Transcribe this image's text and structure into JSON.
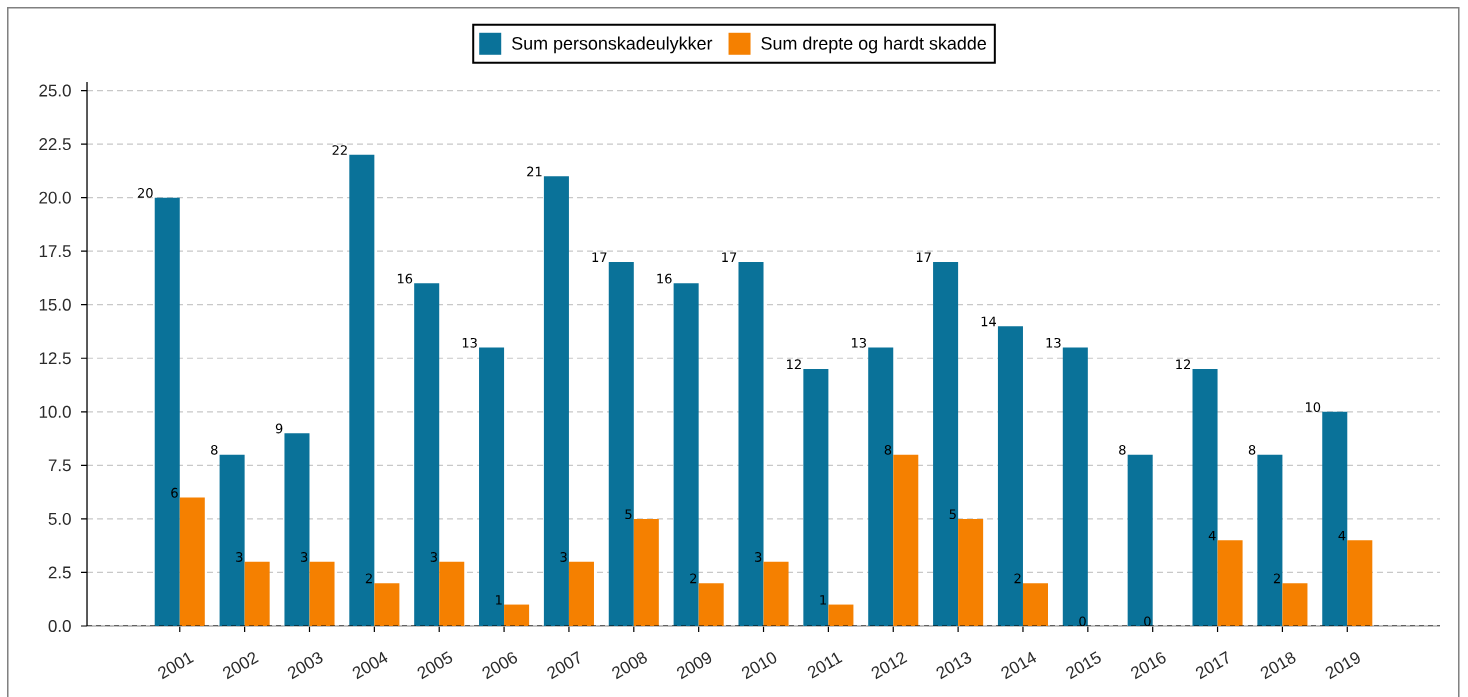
{
  "chart_data": {
    "type": "bar",
    "categories": [
      "2001",
      "2002",
      "2003",
      "2004",
      "2005",
      "2006",
      "2007",
      "2008",
      "2009",
      "2010",
      "2011",
      "2012",
      "2013",
      "2014",
      "2015",
      "2016",
      "2017",
      "2018",
      "2019"
    ],
    "series": [
      {
        "name": "Sum personskadeulykker",
        "color": "#0a7299",
        "values": [
          20,
          8,
          9,
          22,
          16,
          13,
          21,
          17,
          16,
          17,
          12,
          13,
          17,
          14,
          13,
          8,
          12,
          8,
          10
        ]
      },
      {
        "name": "Sum drepte og hardt skadde",
        "color": "#f58000",
        "values": [
          6,
          3,
          3,
          2,
          3,
          1,
          3,
          5,
          2,
          3,
          1,
          8,
          5,
          2,
          0,
          0,
          4,
          2,
          4
        ]
      }
    ],
    "ylim": [
      0,
      25.4
    ],
    "yticks": [
      {
        "value": 0,
        "label": "0.0"
      },
      {
        "value": 2.5,
        "label": "2.5"
      },
      {
        "value": 5,
        "label": "5.0"
      },
      {
        "value": 7.5,
        "label": "7.5"
      },
      {
        "value": 10,
        "label": "10.0"
      },
      {
        "value": 12.5,
        "label": "12.5"
      },
      {
        "value": 15,
        "label": "15.0"
      },
      {
        "value": 17.5,
        "label": "17.5"
      },
      {
        "value": 20,
        "label": "20.0"
      },
      {
        "value": 22.5,
        "label": "22.5"
      },
      {
        "value": 25,
        "label": "25.0"
      }
    ],
    "grid": "y",
    "legend": "top",
    "data_labels": true,
    "ref_lines": [
      {
        "axis": "y",
        "value": 0,
        "color": "#000000",
        "line_style": "dashed"
      }
    ]
  }
}
